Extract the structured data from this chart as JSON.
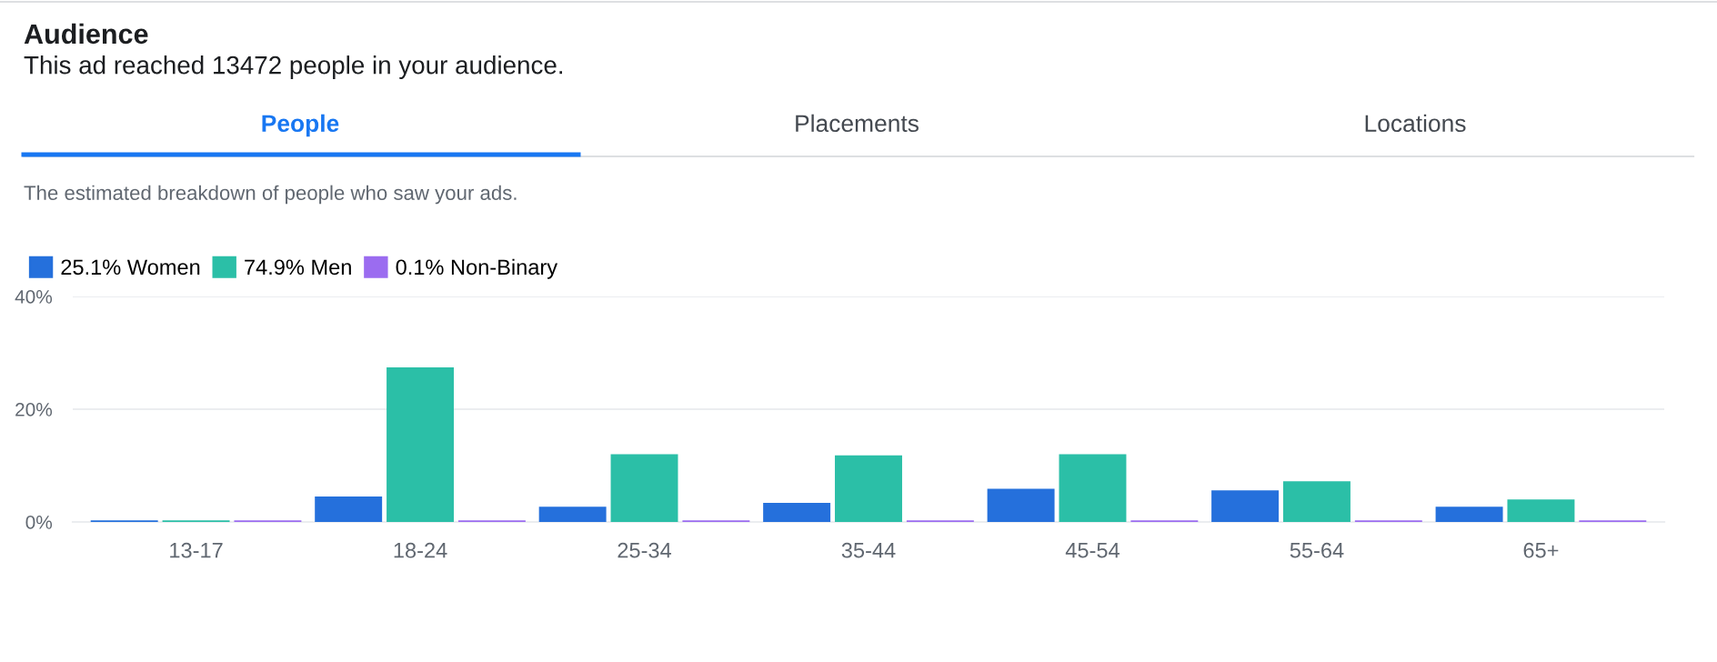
{
  "chart_data": {
    "type": "bar",
    "title": "Audience",
    "subtitle": "This ad reached 13472 people in your audience.",
    "annotations": [
      "People",
      "Placements",
      "Locations",
      "The estimated breakdown of people who saw your ads."
    ],
    "categories": [
      "13-17",
      "18-24",
      "25-34",
      "35-44",
      "45-54",
      "55-64",
      "65+"
    ],
    "series": [
      {
        "name": "25.1% Women",
        "color": "#2570dc",
        "values": [
          0.3,
          4.5,
          2.7,
          3.4,
          5.9,
          5.6,
          2.7
        ]
      },
      {
        "name": "74.9% Men",
        "color": "#2bbfa7",
        "values": [
          0.3,
          27.4,
          12.0,
          11.8,
          12.0,
          7.2,
          4.0
        ]
      },
      {
        "name": "0.1% Non-Binary",
        "color": "#9b6cf0",
        "values": [
          0.3,
          0.3,
          0.3,
          0.3,
          0.3,
          0.3,
          0.3
        ]
      }
    ],
    "ylim": [
      0,
      40
    ],
    "yticks": [
      {
        "value": 0,
        "label": "0%"
      },
      {
        "value": 20,
        "label": "20%"
      },
      {
        "value": 40,
        "label": "40%"
      }
    ],
    "grid": "y",
    "legend": "top left"
  }
}
